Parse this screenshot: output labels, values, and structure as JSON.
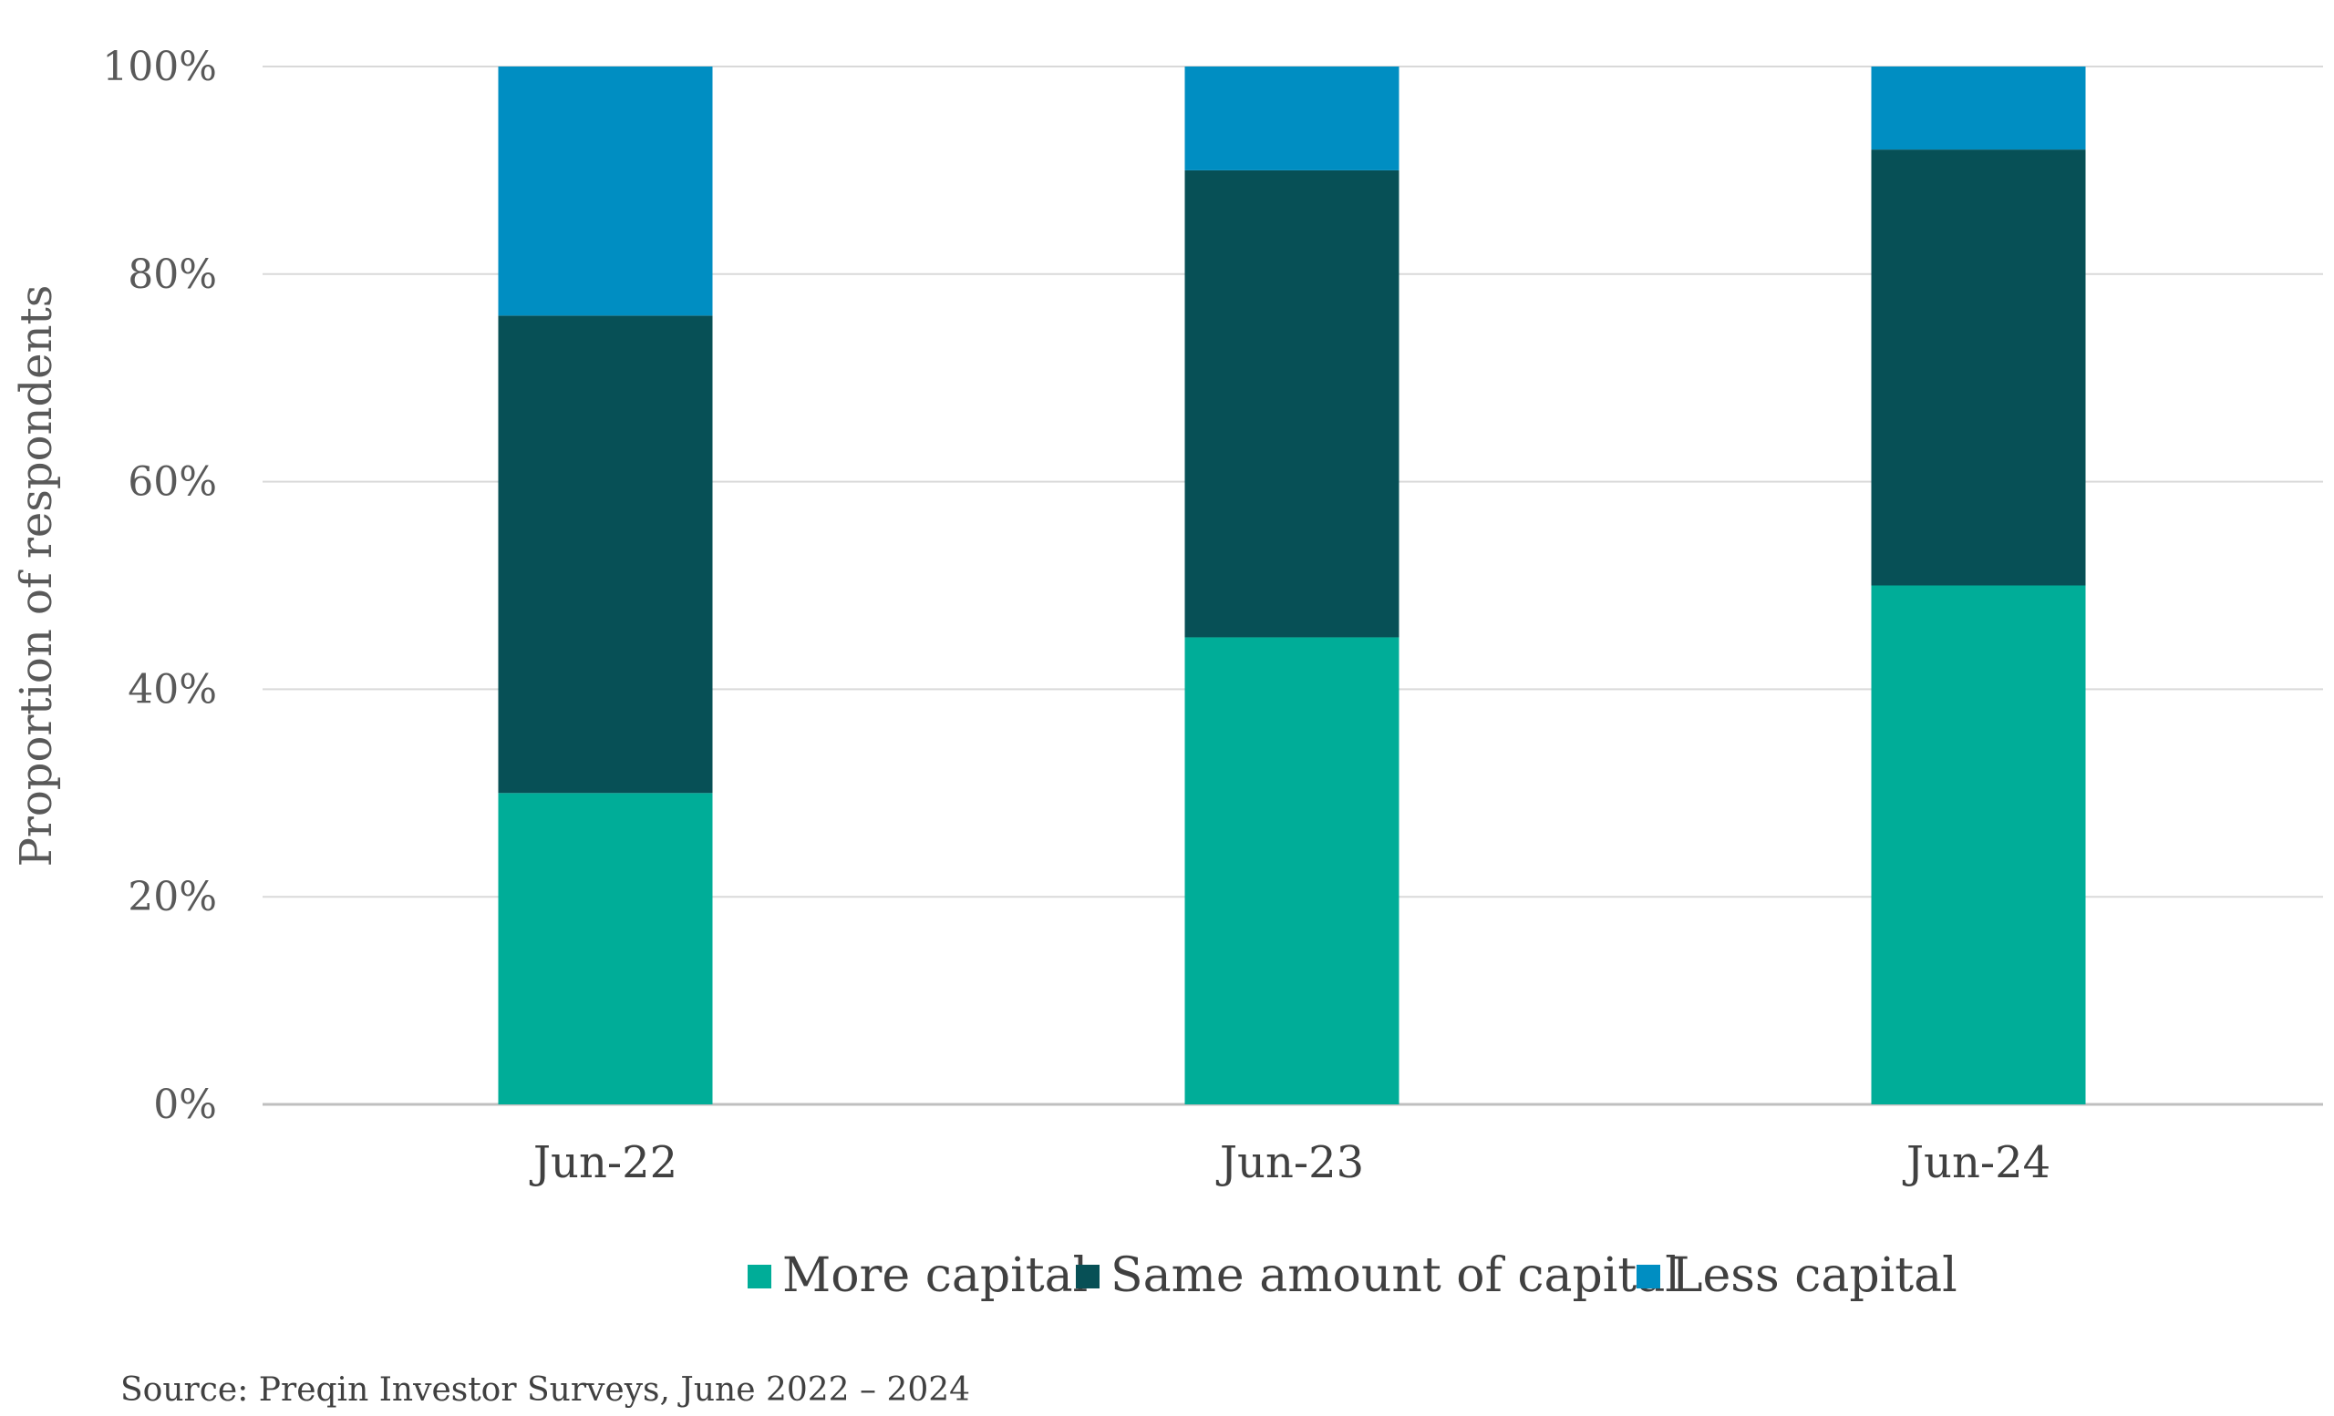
{
  "chart_data": {
    "type": "bar",
    "stacked": true,
    "title": "",
    "xlabel": "",
    "ylabel": "Proportion of respondents",
    "categories": [
      "Jun-22",
      "Jun-23",
      "Jun-24"
    ],
    "series": [
      {
        "name": "More capital",
        "values": [
          30,
          45,
          50
        ],
        "color": "#00AD98"
      },
      {
        "name": "Same amount of capital",
        "values": [
          46,
          45,
          42
        ],
        "color": "#075056"
      },
      {
        "name": "Less capital",
        "values": [
          24,
          10,
          8
        ],
        "color": "#008EC2"
      }
    ],
    "ylim": [
      0,
      100
    ],
    "yticks": [
      "0%",
      "20%",
      "40%",
      "60%",
      "80%",
      "100%"
    ],
    "ytick_values": [
      0,
      20,
      40,
      60,
      80,
      100
    ],
    "grid": true,
    "legend_position": "bottom",
    "source": "Source: Preqin Investor Surveys, June 2022 – 2024"
  },
  "colors": {
    "grid": "#D9D9D9",
    "axis": "#BFBFBF"
  }
}
